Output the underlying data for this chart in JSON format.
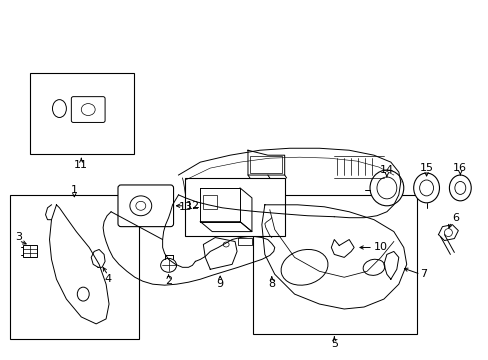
{
  "background_color": "#ffffff",
  "line_color": "#000000",
  "figsize": [
    4.89,
    3.6
  ],
  "dpi": 100,
  "lw": 0.7
}
